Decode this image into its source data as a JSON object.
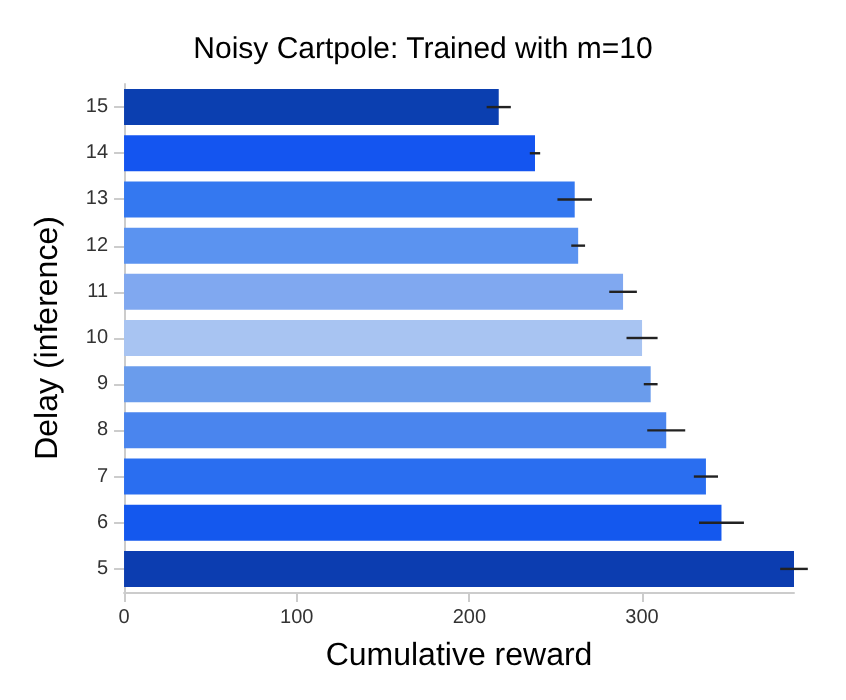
{
  "chart_data": {
    "type": "bar",
    "orientation": "horizontal",
    "title": "Noisy Cartpole: Trained with m=10",
    "xlabel": "Cumulative reward",
    "ylabel": "Delay (inference)",
    "categories": [
      "15",
      "14",
      "13",
      "12",
      "11",
      "10",
      "9",
      "8",
      "7",
      "6",
      "5"
    ],
    "values": [
      217,
      238,
      261,
      263,
      289,
      300,
      305,
      314,
      337,
      346,
      388
    ],
    "errors": [
      7,
      3,
      10,
      4,
      8,
      9,
      4,
      11,
      7,
      13,
      8
    ],
    "colors": [
      "#0b3fb0",
      "#1455f0",
      "#3478f0",
      "#5b93f0",
      "#80a8f0",
      "#a8c4f2",
      "#6a9cec",
      "#4a85ee",
      "#2a6ef0",
      "#1458ee",
      "#0c3db0"
    ],
    "xlim": [
      0,
      388
    ],
    "xticks": [
      0,
      100,
      200,
      300
    ],
    "grid": false
  }
}
